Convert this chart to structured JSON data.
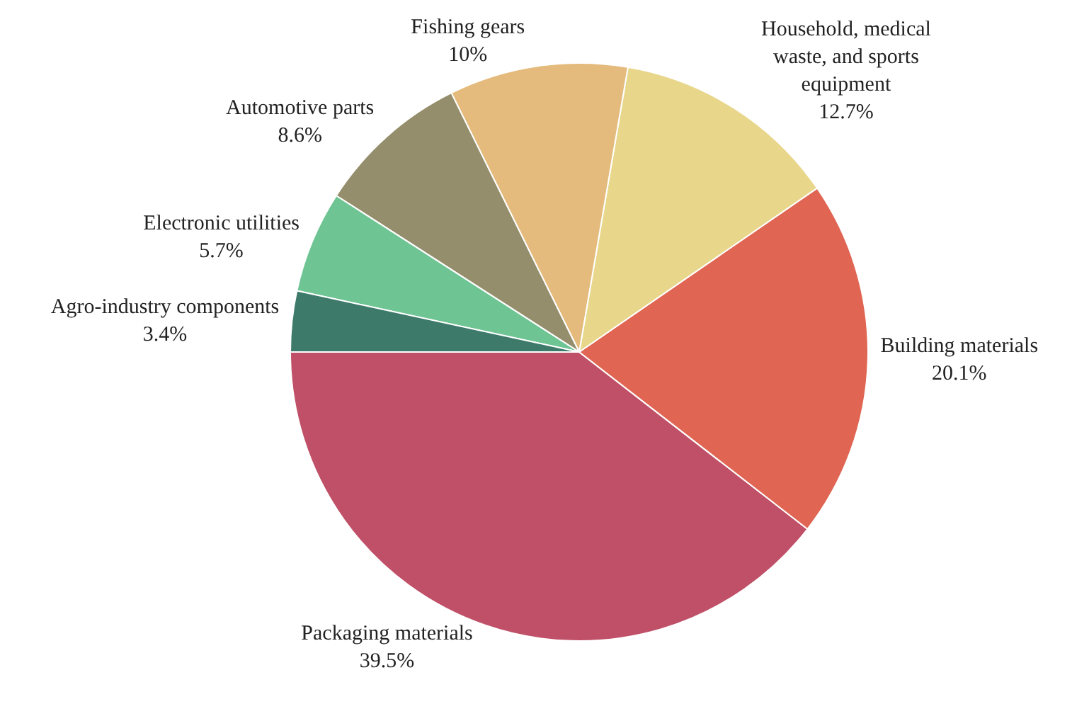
{
  "chart_data": {
    "type": "pie",
    "categories": [
      "Packaging materials",
      "Building materials",
      "Household, medical waste, and sports equipment",
      "Fishing gears",
      "Automotive parts",
      "Electronic utilities",
      "Agro-industry components"
    ],
    "values": [
      39.5,
      20.1,
      12.7,
      10,
      8.6,
      5.7,
      3.4
    ],
    "value_labels": [
      "39.5%",
      "20.1%",
      "12.7%",
      "10%",
      "8.6%",
      "5.7%",
      "3.4%"
    ],
    "colors": [
      "#bf5068",
      "#e06552",
      "#e8d68a",
      "#e4bb7c",
      "#958e6d",
      "#6fc494",
      "#3d7a6a"
    ],
    "legend": false
  }
}
